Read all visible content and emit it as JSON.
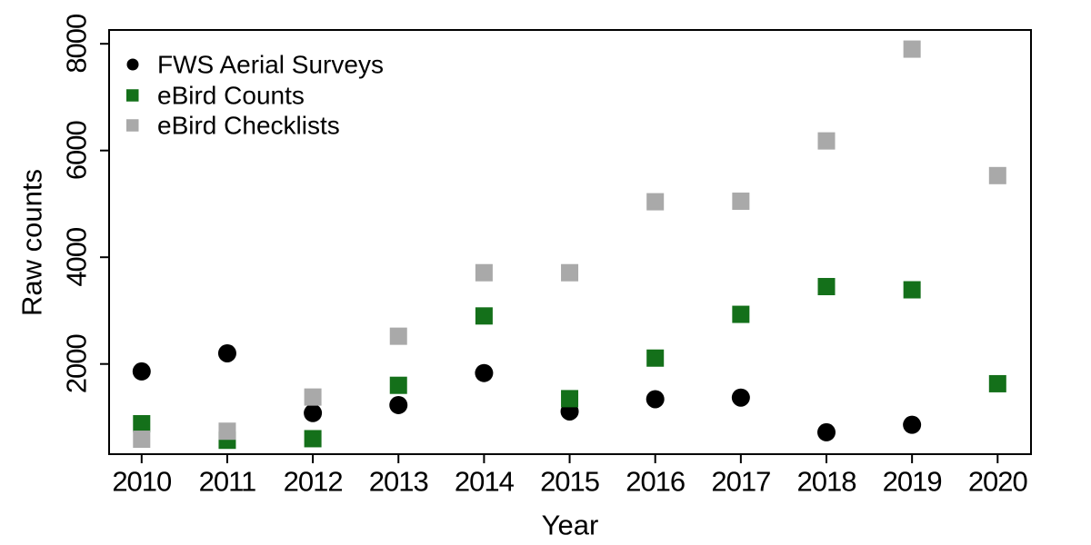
{
  "chart_data": {
    "type": "scatter",
    "title": "",
    "xlabel": "Year",
    "ylabel": "Raw counts",
    "x": [
      2010,
      2011,
      2012,
      2013,
      2014,
      2015,
      2016,
      2017,
      2018,
      2019,
      2020
    ],
    "x_ticks": [
      "2010",
      "2011",
      "2012",
      "2013",
      "2014",
      "2015",
      "2016",
      "2017",
      "2018",
      "2019",
      "2020"
    ],
    "y_ticks": [
      "2000",
      "4000",
      "6000",
      "8000"
    ],
    "y_tick_values": [
      2000,
      4000,
      6000,
      8000
    ],
    "ylim": [
      310,
      8260
    ],
    "grid": false,
    "legend_position": "top-left",
    "series": [
      {
        "name": "FWS Aerial Surveys",
        "marker": "circle",
        "color": "#000000",
        "values": [
          1860,
          2200,
          1080,
          1230,
          1830,
          1110,
          1340,
          1370,
          720,
          860,
          null
        ]
      },
      {
        "name": "eBird Counts",
        "marker": "square",
        "color": "#14701a",
        "values": [
          880,
          570,
          600,
          1600,
          2900,
          1350,
          2110,
          2930,
          3450,
          3390,
          1630
        ]
      },
      {
        "name": "eBird Checklists",
        "marker": "square",
        "color": "#a9a9a9",
        "values": [
          590,
          740,
          1380,
          2520,
          3710,
          3710,
          5040,
          5050,
          6180,
          7900,
          5530
        ]
      }
    ],
    "frame_color": "#000000"
  }
}
